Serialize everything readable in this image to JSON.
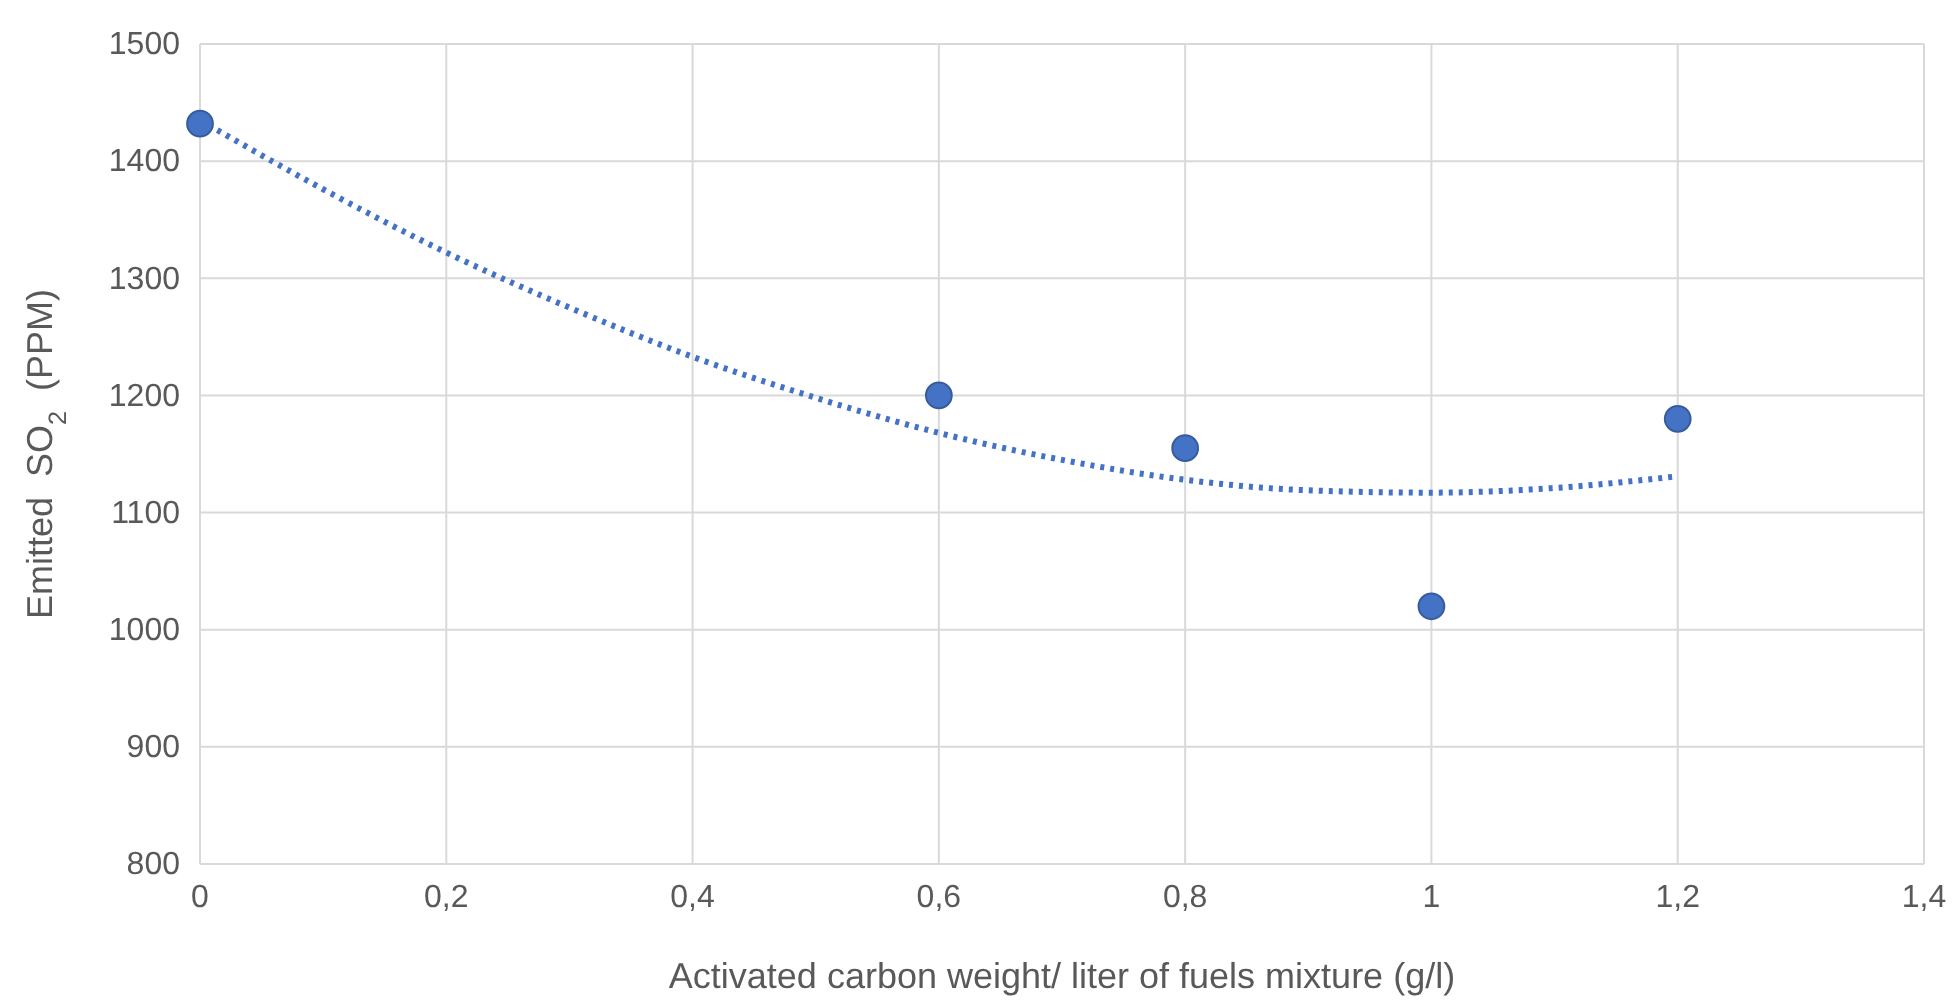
{
  "chart_data": {
    "type": "scatter",
    "xlabel": "Activated carbon weight/ liter of fuels mixture (g/l)",
    "ylabel": "Emitted  SO$_{2}$  (PPM)",
    "xlim": [
      0,
      1.4
    ],
    "ylim": [
      800,
      1500
    ],
    "xticks": [
      0,
      {
        "value": 0.2,
        "label": "0,2"
      },
      {
        "value": 0.4,
        "label": "0,4"
      },
      {
        "value": 0.6,
        "label": "0,6"
      },
      {
        "value": 0.8,
        "label": "0,8"
      },
      1,
      {
        "value": 1.2,
        "label": "1,2"
      },
      {
        "value": 1.4,
        "label": "1,4"
      }
    ],
    "yticks": [
      800,
      900,
      1000,
      1100,
      1200,
      1300,
      1400,
      1500
    ],
    "grid": true,
    "marker": "circle",
    "series": [
      {
        "type": "line",
        "color": "#4472c4",
        "line_style": "dotted",
        "marker": "none",
        "x": [
          0,
          0.1,
          0.2,
          0.3,
          0.4,
          0.5,
          0.6,
          0.7,
          0.8,
          0.9,
          1.0,
          1.1,
          1.2
        ],
        "values": [
          1435,
          1376,
          1322,
          1275,
          1233,
          1198,
          1168,
          1145,
          1128,
          1119,
          1117,
          1121,
          1131
        ]
      },
      {
        "color": "#4472c4",
        "x": [
          0,
          0.6,
          0.8,
          1.0,
          1.2
        ],
        "values": [
          1432,
          1200,
          1155,
          1020,
          1180
        ]
      }
    ]
  }
}
